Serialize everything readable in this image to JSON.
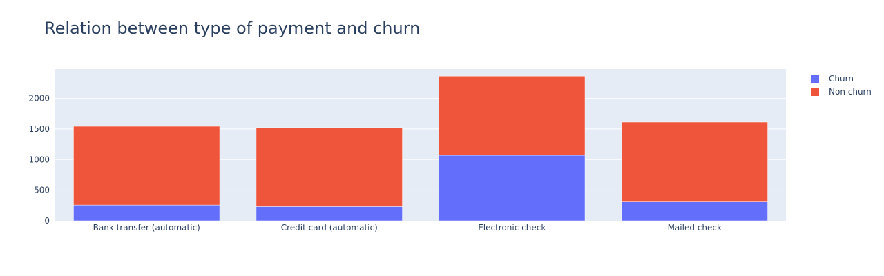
{
  "chart_data": {
    "type": "bar",
    "barmode": "stack",
    "title": "Relation between type of payment and churn",
    "xlabel": "",
    "ylabel": "",
    "categories": [
      "Bank transfer (automatic)",
      "Credit card (automatic)",
      "Electronic check",
      "Mailed check"
    ],
    "series": [
      {
        "name": "Churn",
        "color": "#636efa",
        "values": [
          258,
          232,
          1071,
          308
        ]
      },
      {
        "name": "Non churn",
        "color": "#ef553b",
        "values": [
          1286,
          1290,
          1294,
          1304
        ]
      }
    ],
    "ylim": [
      0,
      2480
    ],
    "yticks": [
      0,
      500,
      1000,
      1500,
      2000
    ],
    "grid": true,
    "legend_position": "top-right",
    "plot_background": "#e5ecf6"
  }
}
